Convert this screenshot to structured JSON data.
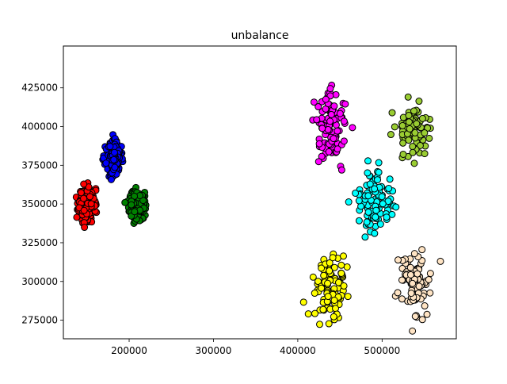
{
  "chart_data": {
    "type": "scatter",
    "title": "unbalance",
    "xlabel": "",
    "ylabel": "",
    "xlim": [
      122000,
      588000
    ],
    "ylim": [
      263000,
      452000
    ],
    "x_ticks": [
      200000,
      300000,
      400000,
      500000
    ],
    "y_ticks": [
      275000,
      300000,
      325000,
      350000,
      375000,
      400000,
      425000
    ],
    "grid": false,
    "legend": "none",
    "marker_edge_color": "#000000",
    "clusters": [
      {
        "color": "#ff0000",
        "n": 300,
        "center": [
          150000,
          350000
        ],
        "spread": [
          4500,
          5000
        ],
        "seed": 11
      },
      {
        "color": "#0000ff",
        "n": 220,
        "center": [
          181000,
          380000
        ],
        "spread": [
          4500,
          4800
        ],
        "seed": 23
      },
      {
        "color": "#008000",
        "n": 220,
        "center": [
          209000,
          349000
        ],
        "spread": [
          4500,
          4800
        ],
        "seed": 37
      },
      {
        "color": "#ff00ff",
        "n": 100,
        "center": [
          440000,
          400000
        ],
        "spread": [
          9500,
          11000
        ],
        "seed": 41
      },
      {
        "color": "#9acd32",
        "n": 100,
        "center": [
          537000,
          399000
        ],
        "spread": [
          10000,
          8000
        ],
        "seed": 53
      },
      {
        "color": "#00ffff",
        "n": 100,
        "center": [
          491000,
          350000
        ],
        "spread": [
          10500,
          10500
        ],
        "seed": 67
      },
      {
        "color": "#ffff00",
        "n": 100,
        "center": [
          438000,
          297000
        ],
        "spread": [
          10000,
          10000
        ],
        "seed": 79
      },
      {
        "color": "#ffe4c4",
        "n": 100,
        "center": [
          537000,
          299000
        ],
        "spread": [
          10500,
          10500
        ],
        "seed": 97
      }
    ]
  }
}
